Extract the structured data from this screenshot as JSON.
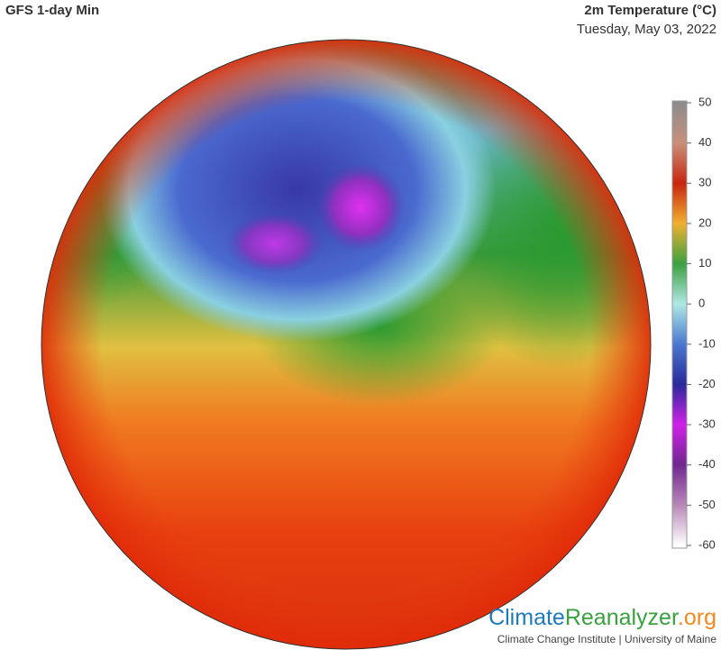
{
  "header": {
    "title": "GFS 1-day Min",
    "variable": "2m Temperature (°C)",
    "date": "Tuesday, May 03, 2022"
  },
  "colorbar": {
    "range": [
      -60,
      50
    ],
    "ticks": [
      50,
      40,
      30,
      20,
      10,
      0,
      -10,
      -20,
      -30,
      -40,
      -50,
      -60
    ],
    "colors": [
      "#8c8c8c",
      "#c9907a",
      "#c8260e",
      "#f0b030",
      "#3aa040",
      "#b0e8e4",
      "#4a78d0",
      "#2a2a9a",
      "#d020e8",
      "#702890",
      "#b888b8",
      "#ffffff"
    ]
  },
  "footer": {
    "brand": [
      "Climate",
      "Reanalyzer",
      ".org"
    ],
    "credit": "Climate Change Institute | University of Maine"
  }
}
